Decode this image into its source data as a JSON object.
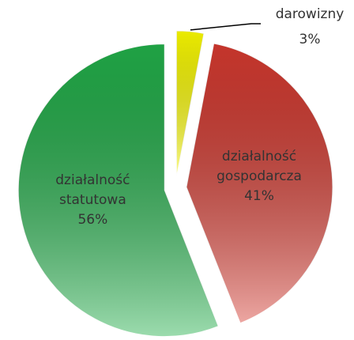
{
  "chart_data": {
    "type": "pie",
    "categories": [
      "darowizny",
      "działalność gospodarcza",
      "działalność statutowa"
    ],
    "values": [
      3,
      41,
      56
    ],
    "value_labels": [
      "3%",
      "41%",
      "56%"
    ],
    "colors": [
      "#ffff00",
      "#d63a30",
      "#22b04a"
    ]
  }
}
